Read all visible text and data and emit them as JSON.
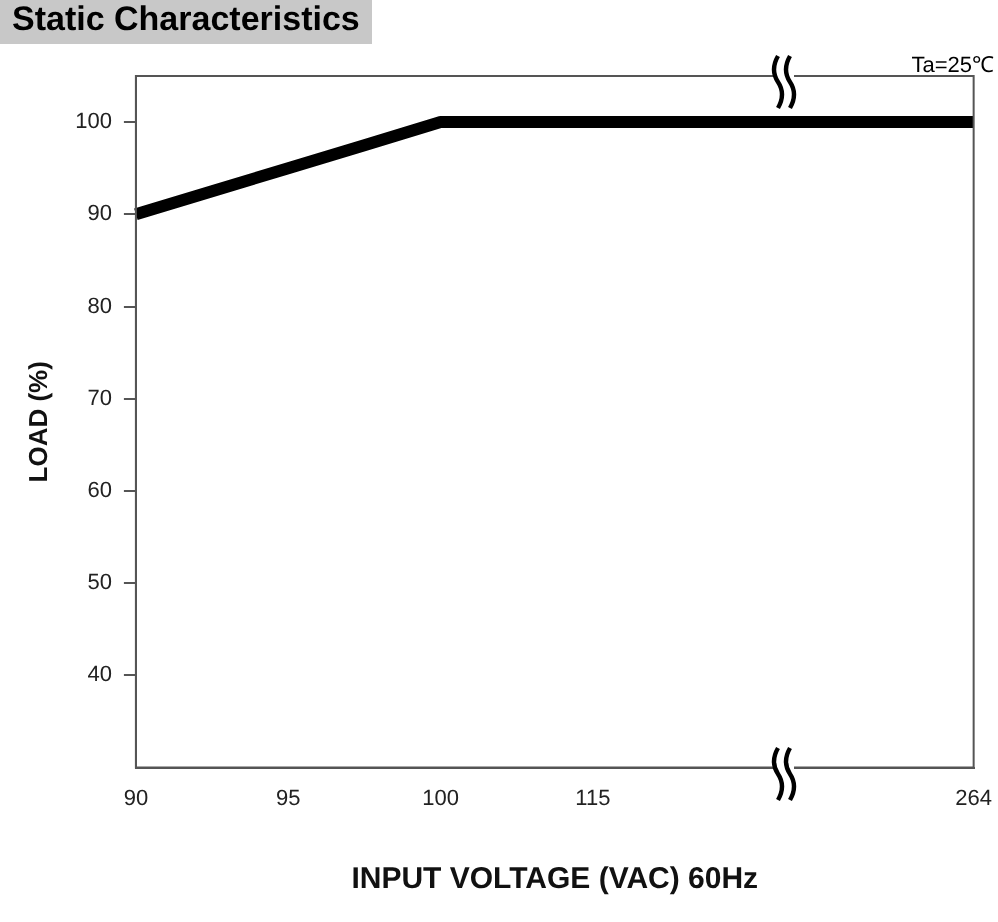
{
  "chart_data": {
    "type": "line",
    "title": "Static Characteristics",
    "annotations": [
      "Ta=25℃"
    ],
    "xlabel": "INPUT VOLTAGE (VAC) 60Hz",
    "ylabel": "LOAD (%)",
    "categories": [
      "90",
      null,
      "95",
      null,
      "100",
      null,
      "115",
      null,
      null,
      null,
      null,
      "264"
    ],
    "series": [
      {
        "color": "#000000",
        "values": [
          90,
          92.5,
          95,
          97.5,
          100,
          100,
          100,
          100,
          100,
          100,
          100,
          100
        ]
      }
    ],
    "ylim": [
      30,
      105
    ],
    "yticks": [
      40,
      50,
      60,
      70,
      80,
      90,
      100
    ],
    "grid": false,
    "legend": false,
    "marker": "none",
    "line_style": "solid"
  }
}
